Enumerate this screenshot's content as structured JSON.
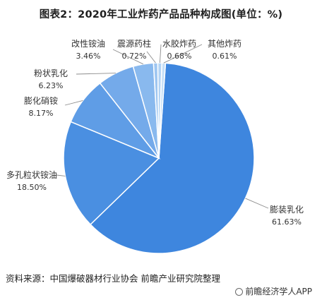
{
  "chart_data": {
    "type": "pie",
    "title": "图表2：2020年工业炸药产品品种构成图(单位：%)",
    "slices": [
      {
        "label": "膨装乳化",
        "value": 61.63,
        "value_label": "61.63%",
        "color": "#3e86de"
      },
      {
        "label": "多孔粒状铵油",
        "value": 18.5,
        "value_label": "18.50%",
        "color": "#4a8fe1"
      },
      {
        "label": "膨化硝铵",
        "value": 8.17,
        "value_label": "8.17%",
        "color": "#5f9de6"
      },
      {
        "label": "粉状乳化",
        "value": 6.23,
        "value_label": "6.23%",
        "color": "#74aaea"
      },
      {
        "label": "改性铵油",
        "value": 3.46,
        "value_label": "3.46%",
        "color": "#89b9ee"
      },
      {
        "label": "震源药柱",
        "value": 0.72,
        "value_label": "0.72%",
        "color": "#9ec6f1"
      },
      {
        "label": "水胶炸药",
        "value": 0.68,
        "value_label": "0.68%",
        "color": "#b2d3f4"
      },
      {
        "label": "其他炸药",
        "value": 0.61,
        "value_label": "0.61%",
        "color": "#c6dff7"
      }
    ],
    "legend": "none"
  },
  "footer": {
    "source": "资料来源：中国爆破器材行业协会 前瞻产业研究院整理",
    "brand": "前瞻经济学人APP"
  }
}
